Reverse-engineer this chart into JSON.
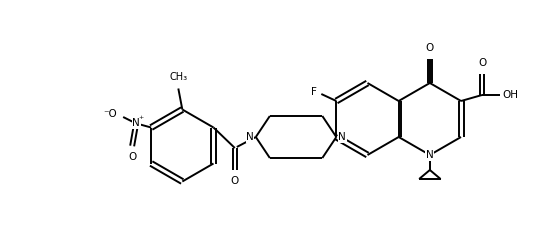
{
  "bg_color": "#ffffff",
  "line_color": "#000000",
  "lw": 1.4,
  "fs": 7.5,
  "figsize": [
    5.5,
    2.38
  ],
  "dpi": 100,
  "xlim": [
    0,
    11
  ],
  "ylim": [
    0,
    4.76
  ]
}
